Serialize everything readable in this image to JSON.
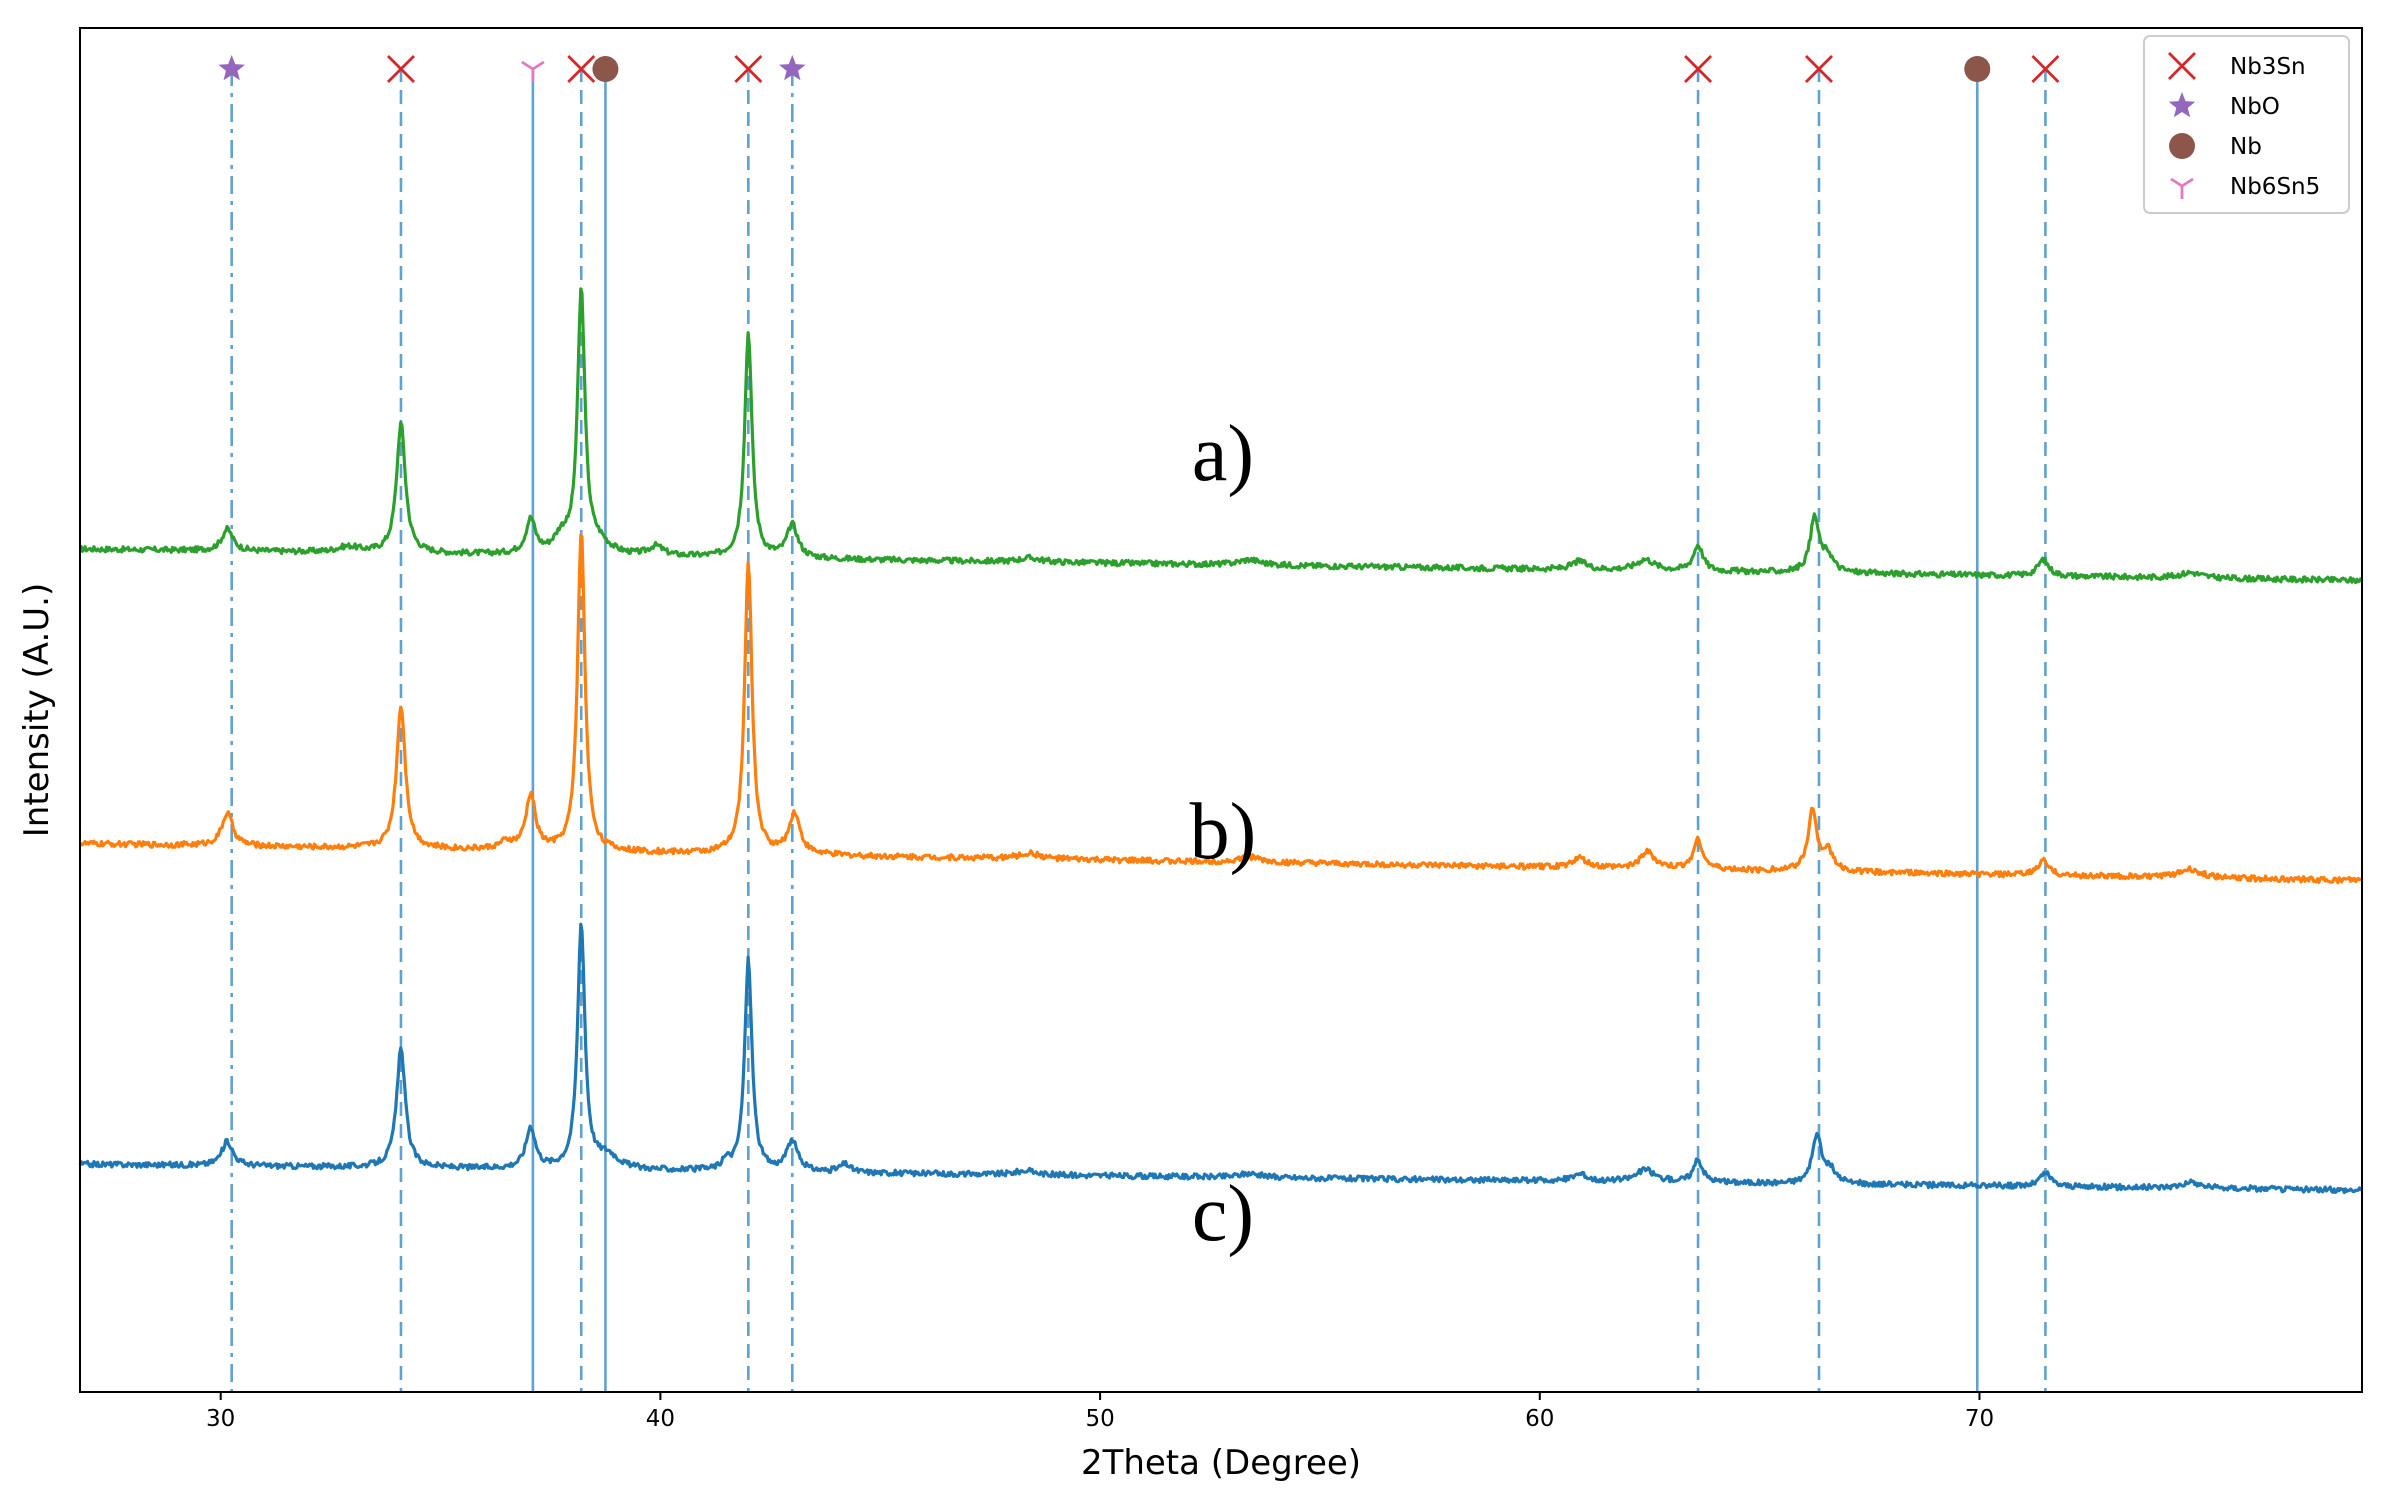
{
  "chart_data": {
    "type": "line",
    "xlabel": "2Theta (Degree)",
    "ylabel": "Intensity (A.U.)",
    "xlim": [
      26.8,
      78.7
    ],
    "x_ticks": [
      30,
      40,
      50,
      60,
      70
    ],
    "y_ticks_shown": false,
    "grid": false,
    "legend_position": "top-right",
    "legend": [
      {
        "name": "Nb3Sn",
        "marker": "x",
        "color": "#d62728"
      },
      {
        "name": "NbO",
        "marker": "star",
        "color": "#9467bd"
      },
      {
        "name": "Nb",
        "marker": "circle",
        "color": "#8c564b"
      },
      {
        "name": "Nb6Sn5",
        "marker": "tri-down",
        "color": "#e377c2"
      }
    ],
    "reference_lines": [
      {
        "x": 30.25,
        "phase": "NbO",
        "style": "dashdot"
      },
      {
        "x": 34.1,
        "phase": "Nb3Sn",
        "style": "dashed"
      },
      {
        "x": 37.1,
        "phase": "Nb6Sn5",
        "style": "solid"
      },
      {
        "x": 38.2,
        "phase": "Nb3Sn",
        "style": "dashed"
      },
      {
        "x": 38.75,
        "phase": "Nb",
        "style": "solid"
      },
      {
        "x": 42.0,
        "phase": "Nb3Sn",
        "style": "dashed"
      },
      {
        "x": 43.0,
        "phase": "NbO",
        "style": "dashdot"
      },
      {
        "x": 63.6,
        "phase": "Nb3Sn",
        "style": "dashed"
      },
      {
        "x": 66.35,
        "phase": "Nb3Sn",
        "style": "dashed"
      },
      {
        "x": 69.95,
        "phase": "Nb",
        "style": "solid"
      },
      {
        "x": 71.5,
        "phase": "Nb3Sn",
        "style": "dashed"
      }
    ],
    "series": [
      {
        "label": "a)",
        "color": "#2ca02c",
        "baseline_start": 0.618,
        "baseline_end": 0.595,
        "peaks": [
          {
            "x": 30.15,
            "h": 0.016,
            "w": 0.15
          },
          {
            "x": 32.9,
            "h": 0.004,
            "w": 0.3
          },
          {
            "x": 34.1,
            "h": 0.095,
            "w": 0.12
          },
          {
            "x": 37.05,
            "h": 0.025,
            "w": 0.13
          },
          {
            "x": 37.75,
            "h": 0.012,
            "w": 0.2
          },
          {
            "x": 38.2,
            "h": 0.192,
            "w": 0.1
          },
          {
            "x": 38.6,
            "h": 0.008,
            "w": 0.3
          },
          {
            "x": 39.9,
            "h": 0.007,
            "w": 0.2
          },
          {
            "x": 42.0,
            "h": 0.165,
            "w": 0.1
          },
          {
            "x": 43.0,
            "h": 0.024,
            "w": 0.15
          },
          {
            "x": 48.4,
            "h": 0.003,
            "w": 0.3
          },
          {
            "x": 53.4,
            "h": 0.004,
            "w": 0.3
          },
          {
            "x": 60.9,
            "h": 0.006,
            "w": 0.2
          },
          {
            "x": 62.4,
            "h": 0.008,
            "w": 0.25
          },
          {
            "x": 63.6,
            "h": 0.019,
            "w": 0.13
          },
          {
            "x": 66.25,
            "h": 0.04,
            "w": 0.12
          },
          {
            "x": 66.55,
            "h": 0.012,
            "w": 0.15
          },
          {
            "x": 71.45,
            "h": 0.012,
            "w": 0.15
          },
          {
            "x": 74.8,
            "h": 0.004,
            "w": 0.3
          }
        ]
      },
      {
        "label": "b)",
        "color": "#ff7f0e",
        "baseline_start": 0.402,
        "baseline_end": 0.375,
        "peaks": [
          {
            "x": 30.15,
            "h": 0.024,
            "w": 0.15
          },
          {
            "x": 34.1,
            "h": 0.105,
            "w": 0.12
          },
          {
            "x": 36.5,
            "h": 0.005,
            "w": 0.2
          },
          {
            "x": 37.05,
            "h": 0.04,
            "w": 0.13
          },
          {
            "x": 38.2,
            "h": 0.236,
            "w": 0.1
          },
          {
            "x": 42.0,
            "h": 0.215,
            "w": 0.1
          },
          {
            "x": 43.05,
            "h": 0.03,
            "w": 0.15
          },
          {
            "x": 48.4,
            "h": 0.004,
            "w": 0.3
          },
          {
            "x": 53.4,
            "h": 0.004,
            "w": 0.3
          },
          {
            "x": 60.9,
            "h": 0.007,
            "w": 0.2
          },
          {
            "x": 62.45,
            "h": 0.012,
            "w": 0.2
          },
          {
            "x": 63.6,
            "h": 0.022,
            "w": 0.13
          },
          {
            "x": 66.2,
            "h": 0.044,
            "w": 0.12
          },
          {
            "x": 66.55,
            "h": 0.014,
            "w": 0.15
          },
          {
            "x": 71.45,
            "h": 0.011,
            "w": 0.15
          },
          {
            "x": 74.8,
            "h": 0.006,
            "w": 0.3
          }
        ]
      },
      {
        "label": "c)",
        "color": "#1f77b4",
        "baseline_start": 0.167,
        "baseline_end": 0.148,
        "peaks": [
          {
            "x": 30.15,
            "h": 0.018,
            "w": 0.15
          },
          {
            "x": 34.1,
            "h": 0.087,
            "w": 0.12
          },
          {
            "x": 37.05,
            "h": 0.03,
            "w": 0.13
          },
          {
            "x": 38.2,
            "h": 0.18,
            "w": 0.1
          },
          {
            "x": 38.8,
            "h": 0.01,
            "w": 0.3
          },
          {
            "x": 41.5,
            "h": 0.006,
            "w": 0.1
          },
          {
            "x": 42.0,
            "h": 0.155,
            "w": 0.1
          },
          {
            "x": 43.0,
            "h": 0.022,
            "w": 0.15
          },
          {
            "x": 44.2,
            "h": 0.006,
            "w": 0.15
          },
          {
            "x": 48.3,
            "h": 0.003,
            "w": 0.3
          },
          {
            "x": 53.4,
            "h": 0.003,
            "w": 0.3
          },
          {
            "x": 60.9,
            "h": 0.005,
            "w": 0.2
          },
          {
            "x": 62.4,
            "h": 0.009,
            "w": 0.25
          },
          {
            "x": 63.6,
            "h": 0.016,
            "w": 0.13
          },
          {
            "x": 66.3,
            "h": 0.035,
            "w": 0.12
          },
          {
            "x": 66.6,
            "h": 0.01,
            "w": 0.15
          },
          {
            "x": 71.5,
            "h": 0.01,
            "w": 0.15
          },
          {
            "x": 74.8,
            "h": 0.004,
            "w": 0.3
          }
        ]
      }
    ]
  }
}
